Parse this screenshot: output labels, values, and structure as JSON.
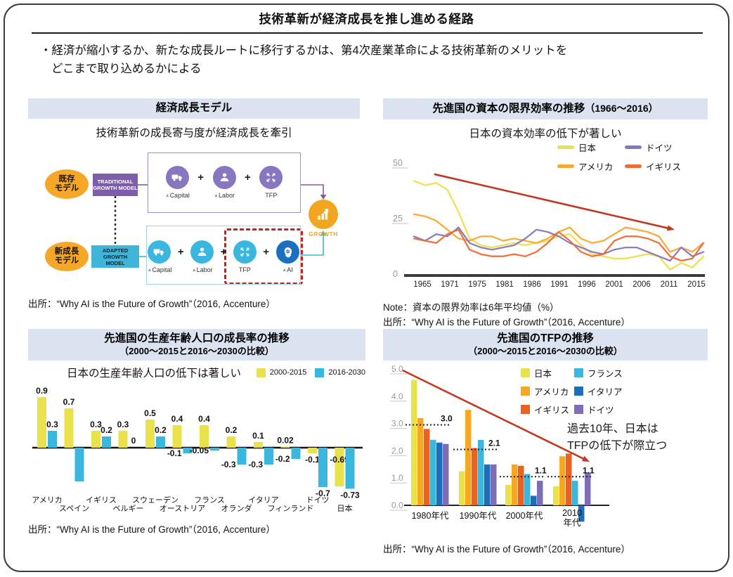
{
  "page": {
    "title": "技術革新が経済成長を推し進める経路",
    "bullet_line1": "・経済が縮小するか、新たな成長ルートに移行するかは、第4次産業革命による技術革新のメリットを",
    "bullet_line2": "どこまで取り込めるかによる"
  },
  "panels": {
    "model": {
      "header": "経済成長モデル",
      "subtitle": "技術革新の成長寄与度が経済成長を牽引",
      "source": "出所：“Why AI is the Future of Growth”（2016, Accenture）",
      "diagram": {
        "existing": [
          "既存",
          "モデル"
        ],
        "traditional": [
          "TRADITIONAL",
          "GROWTH MODEL"
        ],
        "new_model": [
          "新成長",
          "モデル"
        ],
        "adapted": [
          "ADAPTED GROWTH",
          "MODEL"
        ],
        "row1": [
          {
            "icon": "truck",
            "label": "▲Capital"
          },
          {
            "icon": "person",
            "label": "▲Labor"
          },
          {
            "icon": "expand",
            "label": "TFP"
          }
        ],
        "row2": [
          {
            "icon": "truck",
            "label": "▲Capital"
          },
          {
            "icon": "person",
            "label": "▲Labor"
          },
          {
            "icon": "expand",
            "label": "TFP"
          },
          {
            "icon": "ai",
            "label": "▲AI"
          }
        ],
        "growth": "GROWTH",
        "colors": {
          "model_purple": "#7b5ea7",
          "model_cyan": "#3fb6d9",
          "icon_purple": "#8677c0",
          "icon_cyan": "#3ab7de",
          "ai_blue": "#1b6fc0",
          "growth_orange": "#f2a51f",
          "ellipse_orange": "#f5a828",
          "dashed_red": "#c0241c"
        }
      }
    }
  },
  "chart_data": [
    {
      "type": "line",
      "header_main": "先進国の資本の限界効率の推移",
      "header_range": "（1966～2016）",
      "subtitle": "日本の資本効率の低下が著しい",
      "ylim": [
        0,
        50
      ],
      "y_ticks": [
        0,
        25,
        50
      ],
      "x_ticks": [
        "1965",
        "1971",
        "1975",
        "1981",
        "1986",
        "1991",
        "1996",
        "2001",
        "2006",
        "2011",
        "2015"
      ],
      "legend": [
        {
          "label": "日本",
          "color": "#e9e24b"
        },
        {
          "label": "ドイツ",
          "color": "#8577bd"
        },
        {
          "label": "アメリカ",
          "color": "#f7a832"
        },
        {
          "label": "イギリス",
          "color": "#ee6b35"
        }
      ],
      "series": [
        {
          "name": "日本",
          "color": "#e9e24b",
          "values": [
            42,
            40,
            41,
            38,
            28,
            16,
            13,
            12,
            13,
            14,
            13,
            14,
            15,
            17,
            18,
            13,
            9,
            8,
            7,
            7,
            8,
            9,
            8,
            2,
            5,
            3,
            8
          ]
        },
        {
          "name": "アメリカ",
          "color": "#f7a832",
          "values": [
            27,
            26,
            24,
            20,
            16,
            15,
            17,
            17,
            15,
            16,
            15,
            14,
            16,
            19,
            21,
            16,
            14,
            15,
            18,
            21,
            20,
            19,
            17,
            10,
            12,
            10,
            14
          ]
        },
        {
          "name": "ドイツ",
          "color": "#8577bd",
          "values": [
            17,
            15,
            18,
            17,
            21,
            14,
            12,
            11,
            12,
            13,
            16,
            20,
            19,
            17,
            14,
            12,
            10,
            9,
            11,
            12,
            12,
            10,
            8,
            6,
            12,
            8,
            10
          ]
        },
        {
          "name": "イギリス",
          "color": "#ee6b35",
          "values": [
            16,
            15,
            14,
            18,
            20,
            11,
            9,
            8,
            8,
            9,
            8,
            10,
            14,
            19,
            15,
            10,
            8,
            9,
            15,
            17,
            17,
            16,
            14,
            8,
            6,
            7,
            14
          ]
        }
      ],
      "trend_arrow": {
        "x1_frac": 0.07,
        "y1": 45,
        "x2_frac": 0.9,
        "y2": 20,
        "color": "#bf3a1e"
      },
      "note": "Note：資本の限界効率は6年平均値（%）",
      "source": "出所：“Why AI is the Future of Growth”（2016, Accenture）"
    },
    {
      "type": "bar",
      "header_line1": "先進国の生産年齢人口の成長率の推移",
      "header_line2": "（2000～2015と2016～2030の比較）",
      "subtitle": "日本の生産年齢人口の低下は著しい",
      "categories": [
        "アメリカ",
        "スペイン",
        "イギリス",
        "ベルギー",
        "スウェーデン",
        "オーストリア",
        "フランス",
        "オランダ",
        "イタリア",
        "フィンランド",
        "ドイツ",
        "日本"
      ],
      "series": [
        {
          "name": "2000-2015",
          "color": "#e9e24b",
          "values": [
            0.9,
            0.7,
            0.3,
            0.3,
            0.5,
            0.4,
            0.4,
            0.2,
            0.1,
            0.02,
            -0.1,
            -0.69
          ],
          "labels": [
            "0.9",
            "0.7",
            "0.3",
            "0.3",
            "0.5",
            "0.4",
            "0.4",
            "0.2",
            "0.1",
            "0.02",
            "-0.1",
            "-0.69"
          ]
        },
        {
          "name": "2016-2030",
          "color": "#3ab7de",
          "values": [
            0.3,
            -0.6,
            0.2,
            0,
            0.2,
            -0.1,
            -0.05,
            -0.3,
            -0.3,
            -0.2,
            -0.7,
            -0.73
          ],
          "labels": [
            "0.3",
            "",
            "0.2",
            "0",
            "0.2",
            "-0.1",
            "-0.05",
            "-0.3",
            "-0.3",
            "-0.2",
            "-0.7",
            "-0.73"
          ]
        }
      ],
      "source": "出所：“Why AI is the Future of Growth”（2016, Accenture）"
    },
    {
      "type": "bar",
      "header_line1": "先進国のTFPの推移",
      "header_line2": "（2000～2015と2016～2030の比較）",
      "categories": [
        [
          "1980年代"
        ],
        [
          "1990年代"
        ],
        [
          "2000年代"
        ],
        [
          "2010",
          "年代"
        ]
      ],
      "y_ticks": [
        "0.0",
        "1.0",
        "2.0",
        "3.0",
        "4.0",
        "5.0"
      ],
      "series": [
        {
          "name": "日本",
          "color": "#e9e24b",
          "values": [
            4.6,
            1.25,
            0.75,
            0.7
          ]
        },
        {
          "name": "アメリカ",
          "color": "#f7a822",
          "values": [
            3.2,
            3.5,
            1.5,
            1.8
          ]
        },
        {
          "name": "イギリス",
          "color": "#ea6222",
          "values": [
            2.8,
            2.1,
            1.45,
            1.9
          ]
        },
        {
          "name": "フランス",
          "color": "#3ab7de",
          "values": [
            2.4,
            2.4,
            1.15,
            0.9
          ]
        },
        {
          "name": "イタリア",
          "color": "#1b6fba",
          "values": [
            2.3,
            1.5,
            0.35,
            -0.6
          ]
        },
        {
          "name": "ドイツ",
          "color": "#7e6eb8",
          "values": [
            2.25,
            1.5,
            0.9,
            1.2
          ]
        }
      ],
      "legend": [
        {
          "label": "日本",
          "color": "#e9e24b"
        },
        {
          "label": "フランス",
          "color": "#3ab7de"
        },
        {
          "label": "アメリカ",
          "color": "#f7a822"
        },
        {
          "label": "イタリア",
          "color": "#1b6fba"
        },
        {
          "label": "イギリス",
          "color": "#ea6222"
        },
        {
          "label": "ドイツ",
          "color": "#7e6eb8"
        }
      ],
      "avg_lines": [
        {
          "label": "3.0",
          "value": 3.0
        },
        {
          "label": "2.1",
          "value": 2.1
        },
        {
          "label": "1.1",
          "value": 1.1
        },
        {
          "label": "1.1",
          "value": 1.1
        }
      ],
      "annotation_lines": [
        "過去10年、日本は",
        "TFPの低下が際立つ"
      ],
      "trend_arrow": {
        "color": "#c03a20"
      },
      "source": "出所：“Why AI is the Future of Growth”（2016, Accenture）"
    }
  ]
}
